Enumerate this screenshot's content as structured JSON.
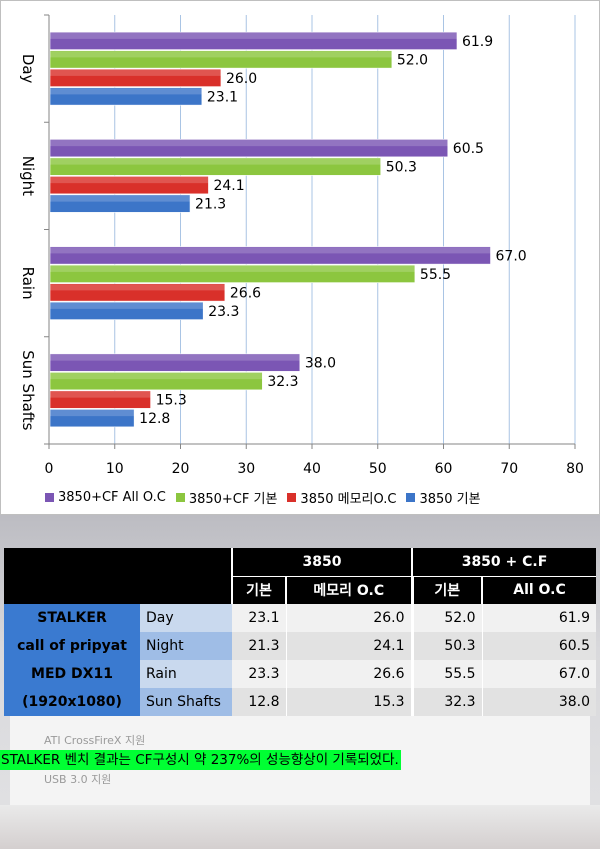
{
  "chart_data": {
    "type": "bar",
    "orientation": "horizontal",
    "categories": [
      "Day",
      "Night",
      "Rain",
      "Sun Shafts"
    ],
    "series": [
      {
        "name": "3850+CF All O.C",
        "color": "#7b56b4",
        "values": [
          61.9,
          60.5,
          67.0,
          38.0
        ]
      },
      {
        "name": "3850+CF 기본",
        "color": "#8cc63f",
        "values": [
          52.0,
          50.3,
          55.5,
          32.3
        ]
      },
      {
        "name": "3850 메모리O.C",
        "color": "#d9302a",
        "values": [
          26.0,
          24.1,
          26.6,
          15.3
        ]
      },
      {
        "name": "3850 기본",
        "color": "#3c75c8",
        "values": [
          23.1,
          21.3,
          23.3,
          12.8
        ]
      }
    ],
    "xlim": [
      0,
      80
    ],
    "xticks": [
      "0",
      "10",
      "20",
      "30",
      "40",
      "50",
      "60",
      "70",
      "80"
    ],
    "grid": true,
    "legend_position": "bottom"
  },
  "table": {
    "group_headers": [
      "3850",
      "3850 + C.F"
    ],
    "sub_headers": [
      "기본",
      "메모리 O.C",
      "기본",
      "All O.C"
    ],
    "name_lines": [
      "STALKER",
      "call of pripyat",
      "MED DX11",
      "(1920x1080)"
    ],
    "rows": [
      {
        "label": "Day",
        "values": [
          "23.1",
          "26.0",
          "52.0",
          "61.9"
        ]
      },
      {
        "label": "Night",
        "values": [
          "21.3",
          "24.1",
          "50.3",
          "60.5"
        ]
      },
      {
        "label": "Rain",
        "values": [
          "23.3",
          "26.6",
          "55.5",
          "67.0"
        ]
      },
      {
        "label": "Sun Shafts",
        "values": [
          "12.8",
          "15.3",
          "32.3",
          "38.0"
        ]
      }
    ]
  },
  "background_text": [
    "ATI CrossFireX 지원",
    "USB 3.0 지원"
  ],
  "caption": "STALKER 벤치 결과는 CF구성시 약 237%의 성능향상이 기록되었다."
}
